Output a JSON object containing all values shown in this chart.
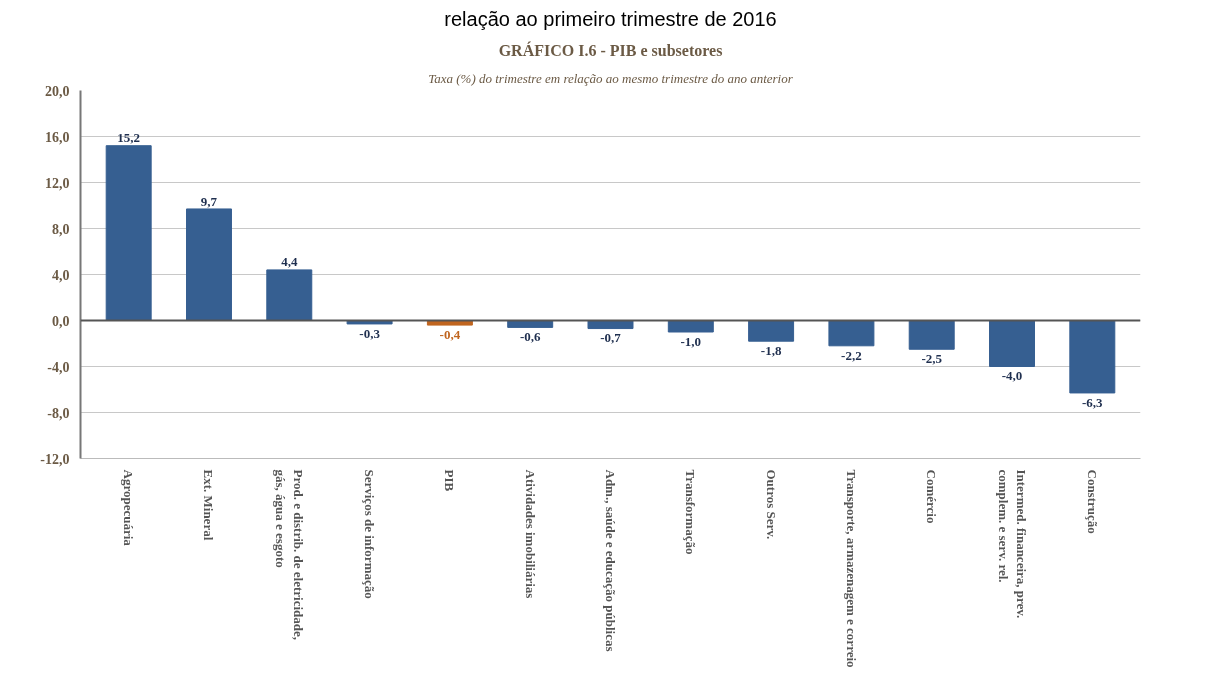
{
  "chart_data": {
    "type": "bar",
    "title": "GRÁFICO I.6 - PIB e subsetores",
    "subtitle": "Taxa (%) do trimestre em relação ao mesmo trimestre do ano anterior",
    "annotations": [
      "relação ao primeiro trimestre de 2016"
    ],
    "categories": [
      "Agropecuária",
      "Ext. Mineral",
      "Prod. e distrib. de eletricidade, gás, água e esgoto",
      "Serviços de informação",
      "PIB",
      "Atividades imobiliárias",
      "Adm., saúde e educação públicas",
      "Transformação",
      "Outros Serv.",
      "Transporte, armazenagem e correio",
      "Comércio",
      "Intermed. financeira, prev. complem. e serv. rel.",
      "Construção"
    ],
    "values": [
      15.2,
      9.7,
      4.4,
      -0.3,
      -0.4,
      -0.6,
      -0.7,
      -1.0,
      -1.8,
      -2.2,
      -2.5,
      -4.0,
      -6.3
    ],
    "value_labels": [
      "15,2",
      "9,7",
      "4,4",
      "-0,3",
      "-0,4",
      "-0,6",
      "-0,7",
      "-1,0",
      "-1,8",
      "-2,2",
      "-2,5",
      "-4,0",
      "-6,3"
    ],
    "colors": [
      "#365f91",
      "#365f91",
      "#365f91",
      "#365f91",
      "#c0651f",
      "#365f91",
      "#365f91",
      "#365f91",
      "#365f91",
      "#365f91",
      "#365f91",
      "#365f91",
      "#365f91"
    ],
    "ylim": [
      -12,
      20
    ],
    "yticks": [
      {
        "value": -12,
        "label": "-12,0"
      },
      {
        "value": -8,
        "label": "-8,0"
      },
      {
        "value": -4,
        "label": "-4,0"
      },
      {
        "value": 0,
        "label": "0,0"
      },
      {
        "value": 4,
        "label": "4,0"
      },
      {
        "value": 8,
        "label": "8,0"
      },
      {
        "value": 12,
        "label": "12,0"
      },
      {
        "value": 16,
        "label": "16,0"
      },
      {
        "value": 20,
        "label": "20,0"
      }
    ],
    "grid": "y"
  }
}
